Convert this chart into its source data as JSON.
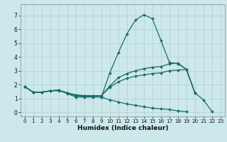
{
  "title": "",
  "xlabel": "Humidex (Indice chaleur)",
  "xlim": [
    -0.5,
    23.5
  ],
  "ylim": [
    -0.3,
    7.8
  ],
  "xticks": [
    0,
    1,
    2,
    3,
    4,
    5,
    6,
    7,
    8,
    9,
    10,
    11,
    12,
    13,
    14,
    15,
    16,
    17,
    18,
    19,
    20,
    21,
    22,
    23
  ],
  "yticks": [
    0,
    1,
    2,
    3,
    4,
    5,
    6,
    7
  ],
  "bg_color": "#cce8ea",
  "grid_color": "#b0d4d8",
  "line_color": "#1a6b6b",
  "lines": [
    {
      "x": [
        0,
        1,
        2,
        3,
        4,
        5,
        6,
        7,
        8,
        9,
        10,
        11,
        12,
        13,
        14,
        15,
        16,
        17,
        18,
        19,
        20,
        21,
        22
      ],
      "y": [
        1.85,
        1.45,
        1.45,
        1.55,
        1.6,
        1.35,
        1.1,
        1.1,
        1.1,
        1.1,
        2.85,
        4.3,
        5.65,
        6.65,
        7.05,
        6.75,
        5.2,
        3.6,
        3.5,
        3.1,
        1.4,
        0.9,
        0.05
      ]
    },
    {
      "x": [
        0,
        1,
        2,
        3,
        4,
        5,
        6,
        7,
        8,
        9,
        10,
        11,
        12,
        13,
        14,
        15,
        16,
        17,
        18,
        19,
        20
      ],
      "y": [
        1.85,
        1.45,
        1.45,
        1.55,
        1.6,
        1.4,
        1.25,
        1.2,
        1.2,
        1.2,
        1.9,
        2.5,
        2.8,
        3.0,
        3.15,
        3.25,
        3.3,
        3.5,
        3.55,
        3.1,
        1.4
      ]
    },
    {
      "x": [
        0,
        1,
        2,
        3,
        4,
        5,
        6,
        7,
        8,
        9,
        10,
        11,
        12,
        13,
        14,
        15,
        16,
        17,
        18,
        19,
        20
      ],
      "y": [
        1.85,
        1.45,
        1.45,
        1.55,
        1.6,
        1.4,
        1.25,
        1.2,
        1.2,
        1.2,
        1.8,
        2.2,
        2.45,
        2.6,
        2.7,
        2.8,
        2.85,
        3.0,
        3.05,
        3.1,
        1.4
      ]
    },
    {
      "x": [
        0,
        1,
        2,
        3,
        4,
        5,
        6,
        7,
        8,
        9,
        10,
        11,
        12,
        13,
        14,
        15,
        16,
        17,
        18,
        19
      ],
      "y": [
        1.85,
        1.45,
        1.45,
        1.55,
        1.55,
        1.4,
        1.2,
        1.15,
        1.15,
        1.1,
        0.9,
        0.75,
        0.6,
        0.5,
        0.4,
        0.3,
        0.25,
        0.2,
        0.1,
        0.05
      ]
    }
  ]
}
